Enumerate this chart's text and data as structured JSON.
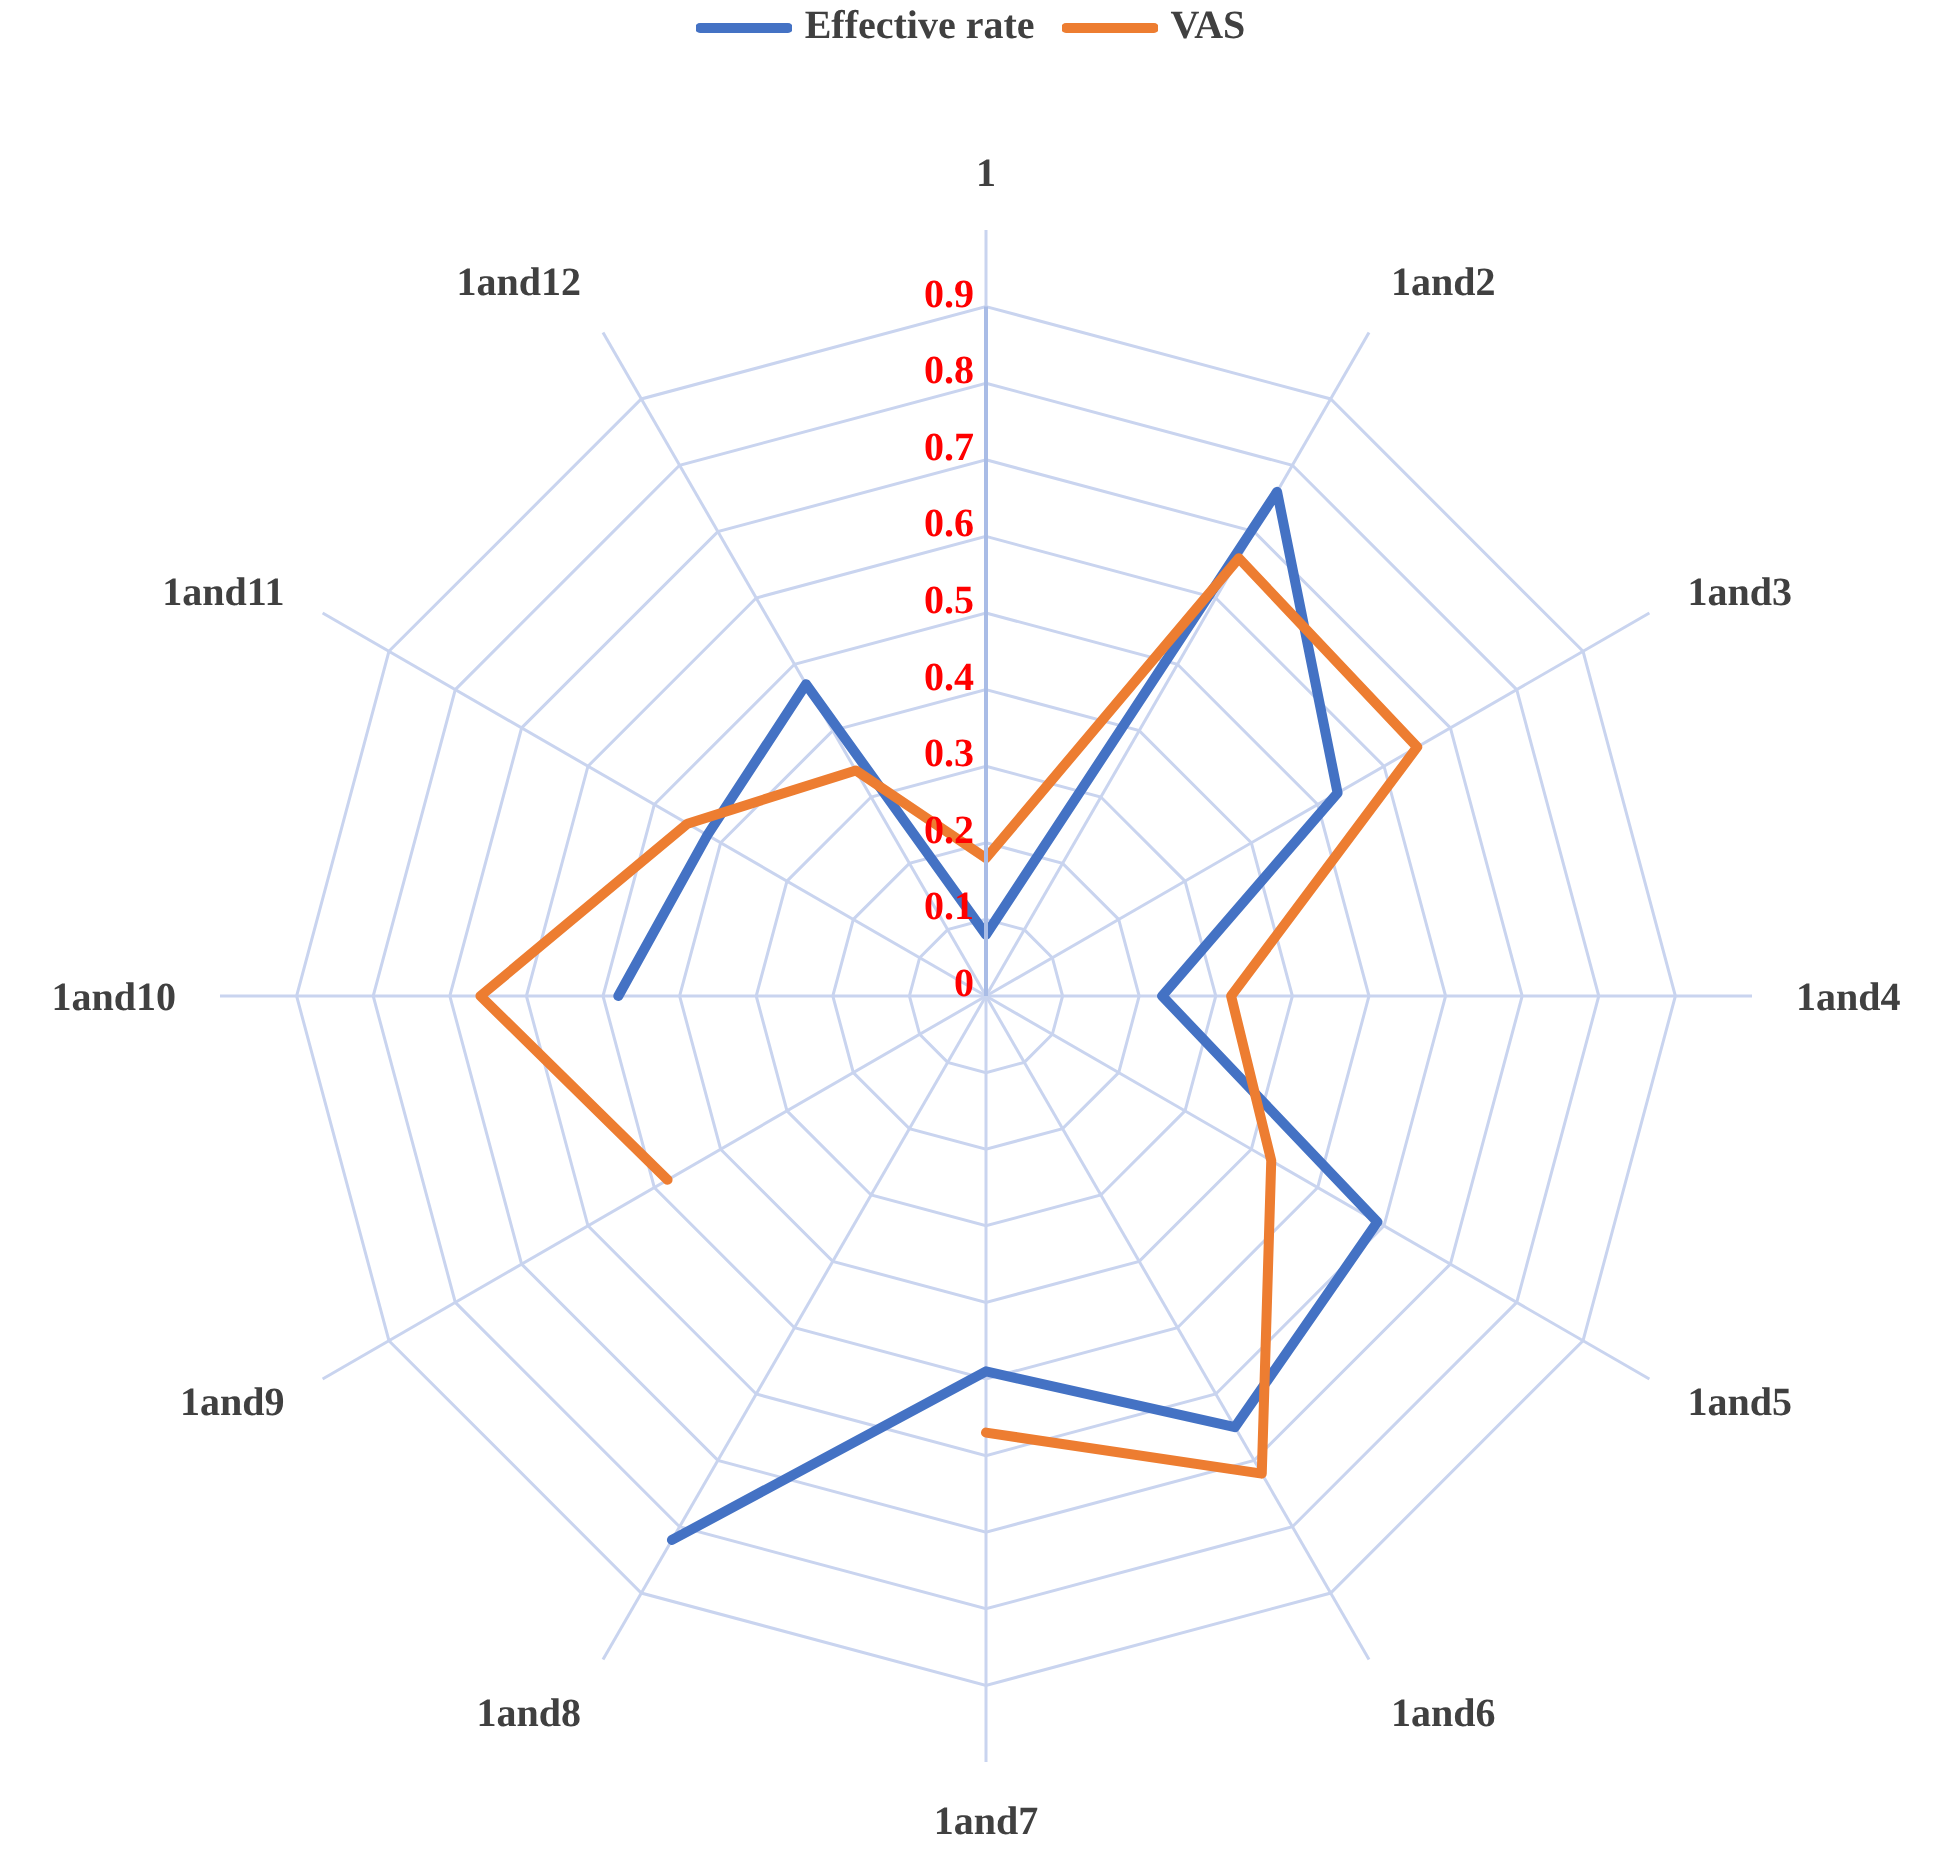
{
  "chart_data": {
    "type": "radar",
    "categories": [
      "1",
      "1and2",
      "1and3",
      "1and4",
      "1and5",
      "1and6",
      "1and7",
      "1and8",
      "1and9",
      "1and10",
      "1and11",
      "1and12"
    ],
    "series": [
      {
        "name": "Effective rate",
        "color": "#4472c4",
        "values": [
          0.08,
          0.76,
          0.53,
          0.23,
          0.59,
          0.65,
          0.49,
          0.82,
          null,
          0.48,
          0.42,
          0.47
        ]
      },
      {
        "name": "VAS",
        "color": "#ed7d31",
        "values": [
          0.18,
          0.66,
          0.65,
          0.32,
          0.43,
          0.72,
          0.57,
          null,
          0.48,
          0.66,
          0.45,
          0.34
        ]
      }
    ],
    "ylim": [
      0,
      0.9
    ],
    "yticks": [
      0,
      0.1,
      0.2,
      0.3,
      0.4,
      0.5,
      0.6,
      0.7,
      0.8,
      0.9
    ],
    "grid": true,
    "legend": "top",
    "marker": "none",
    "line_style": "solid"
  }
}
